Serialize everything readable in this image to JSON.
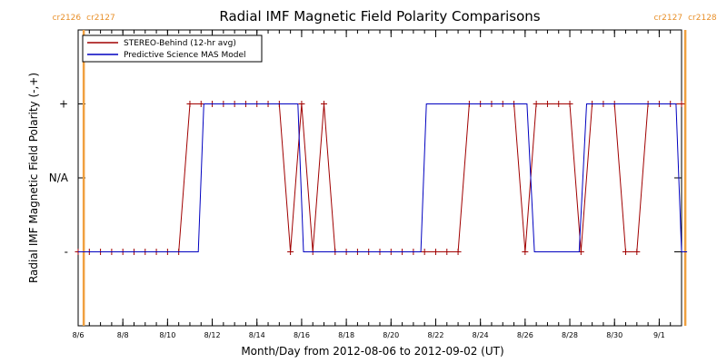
{
  "chart_data": {
    "type": "line",
    "title": "Radial IMF Magnetic Field Polarity Comparisons",
    "xlabel": "Month/Day from 2012-08-06 to 2012-09-02 (UT)",
    "ylabel": "Radial IMF Magnetic Field Polarity (-,+)",
    "x_ticks": [
      "8/6",
      "8/8",
      "8/10",
      "8/12",
      "8/14",
      "8/16",
      "8/18",
      "8/20",
      "8/22",
      "8/24",
      "8/26",
      "8/28",
      "8/30",
      "9/1"
    ],
    "y_ticks": [
      "+",
      "N/A",
      "-"
    ],
    "y_tick_values": [
      1,
      0,
      -1
    ],
    "xlim": [
      "2012-08-06",
      "2012-09-02"
    ],
    "ylim": [
      -2,
      2
    ],
    "legend_position": "top-left",
    "carrington_markers": [
      {
        "date": "2012-08-06T06:00",
        "labels": [
          "cr2126",
          "cr2127"
        ]
      },
      {
        "date": "2012-09-02T04:00",
        "labels": [
          "cr2127",
          "cr2128"
        ]
      }
    ],
    "series": [
      {
        "name": "STEREO-Behind (12-hr avg)",
        "color": "#a00000",
        "markers": true,
        "points": [
          [
            "2012-08-06T00:00",
            -1
          ],
          [
            "2012-08-06T12:00",
            -1
          ],
          [
            "2012-08-07T00:00",
            -1
          ],
          [
            "2012-08-07T12:00",
            -1
          ],
          [
            "2012-08-08T00:00",
            -1
          ],
          [
            "2012-08-08T12:00",
            -1
          ],
          [
            "2012-08-09T00:00",
            -1
          ],
          [
            "2012-08-09T12:00",
            -1
          ],
          [
            "2012-08-10T00:00",
            -1
          ],
          [
            "2012-08-10T12:00",
            -1
          ],
          [
            "2012-08-11T00:00",
            1
          ],
          [
            "2012-08-11T12:00",
            1
          ],
          [
            "2012-08-12T00:00",
            1
          ],
          [
            "2012-08-12T12:00",
            1
          ],
          [
            "2012-08-13T00:00",
            1
          ],
          [
            "2012-08-13T12:00",
            1
          ],
          [
            "2012-08-14T00:00",
            1
          ],
          [
            "2012-08-14T12:00",
            1
          ],
          [
            "2012-08-15T00:00",
            1
          ],
          [
            "2012-08-15T12:00",
            -1
          ],
          [
            "2012-08-16T00:00",
            1
          ],
          [
            "2012-08-16T12:00",
            -1
          ],
          [
            "2012-08-17T00:00",
            1
          ],
          [
            "2012-08-17T12:00",
            -1
          ],
          [
            "2012-08-18T00:00",
            -1
          ],
          [
            "2012-08-18T12:00",
            -1
          ],
          [
            "2012-08-19T00:00",
            -1
          ],
          [
            "2012-08-19T12:00",
            -1
          ],
          [
            "2012-08-20T00:00",
            -1
          ],
          [
            "2012-08-20T12:00",
            -1
          ],
          [
            "2012-08-21T00:00",
            -1
          ],
          [
            "2012-08-21T12:00",
            -1
          ],
          [
            "2012-08-22T00:00",
            -1
          ],
          [
            "2012-08-22T12:00",
            -1
          ],
          [
            "2012-08-23T00:00",
            -1
          ],
          [
            "2012-08-23T12:00",
            1
          ],
          [
            "2012-08-24T00:00",
            1
          ],
          [
            "2012-08-24T12:00",
            1
          ],
          [
            "2012-08-25T00:00",
            1
          ],
          [
            "2012-08-25T12:00",
            1
          ],
          [
            "2012-08-26T00:00",
            -1
          ],
          [
            "2012-08-26T12:00",
            1
          ],
          [
            "2012-08-27T00:00",
            1
          ],
          [
            "2012-08-27T12:00",
            1
          ],
          [
            "2012-08-28T00:00",
            1
          ],
          [
            "2012-08-28T12:00",
            -1
          ],
          [
            "2012-08-29T00:00",
            1
          ],
          [
            "2012-08-29T12:00",
            1
          ],
          [
            "2012-08-30T00:00",
            1
          ],
          [
            "2012-08-30T12:00",
            -1
          ],
          [
            "2012-08-31T00:00",
            -1
          ],
          [
            "2012-08-31T12:00",
            1
          ],
          [
            "2012-09-01T00:00",
            1
          ],
          [
            "2012-09-01T12:00",
            1
          ],
          [
            "2012-09-02T00:00",
            1
          ]
        ]
      },
      {
        "name": "Predictive Science MAS Model",
        "color": "#0000c0",
        "markers": false,
        "points": [
          [
            "2012-08-06T00:00",
            -1
          ],
          [
            "2012-08-11T09:00",
            -1
          ],
          [
            "2012-08-11T15:00",
            1
          ],
          [
            "2012-08-15T20:00",
            1
          ],
          [
            "2012-08-16T02:00",
            -1
          ],
          [
            "2012-08-21T08:00",
            -1
          ],
          [
            "2012-08-21T14:00",
            1
          ],
          [
            "2012-08-26T02:00",
            1
          ],
          [
            "2012-08-26T10:00",
            -1
          ],
          [
            "2012-08-28T10:00",
            -1
          ],
          [
            "2012-08-28T18:00",
            1
          ],
          [
            "2012-09-01T18:00",
            1
          ],
          [
            "2012-09-02T00:00",
            -1
          ],
          [
            "2012-09-02T06:00",
            -1
          ]
        ]
      }
    ]
  }
}
